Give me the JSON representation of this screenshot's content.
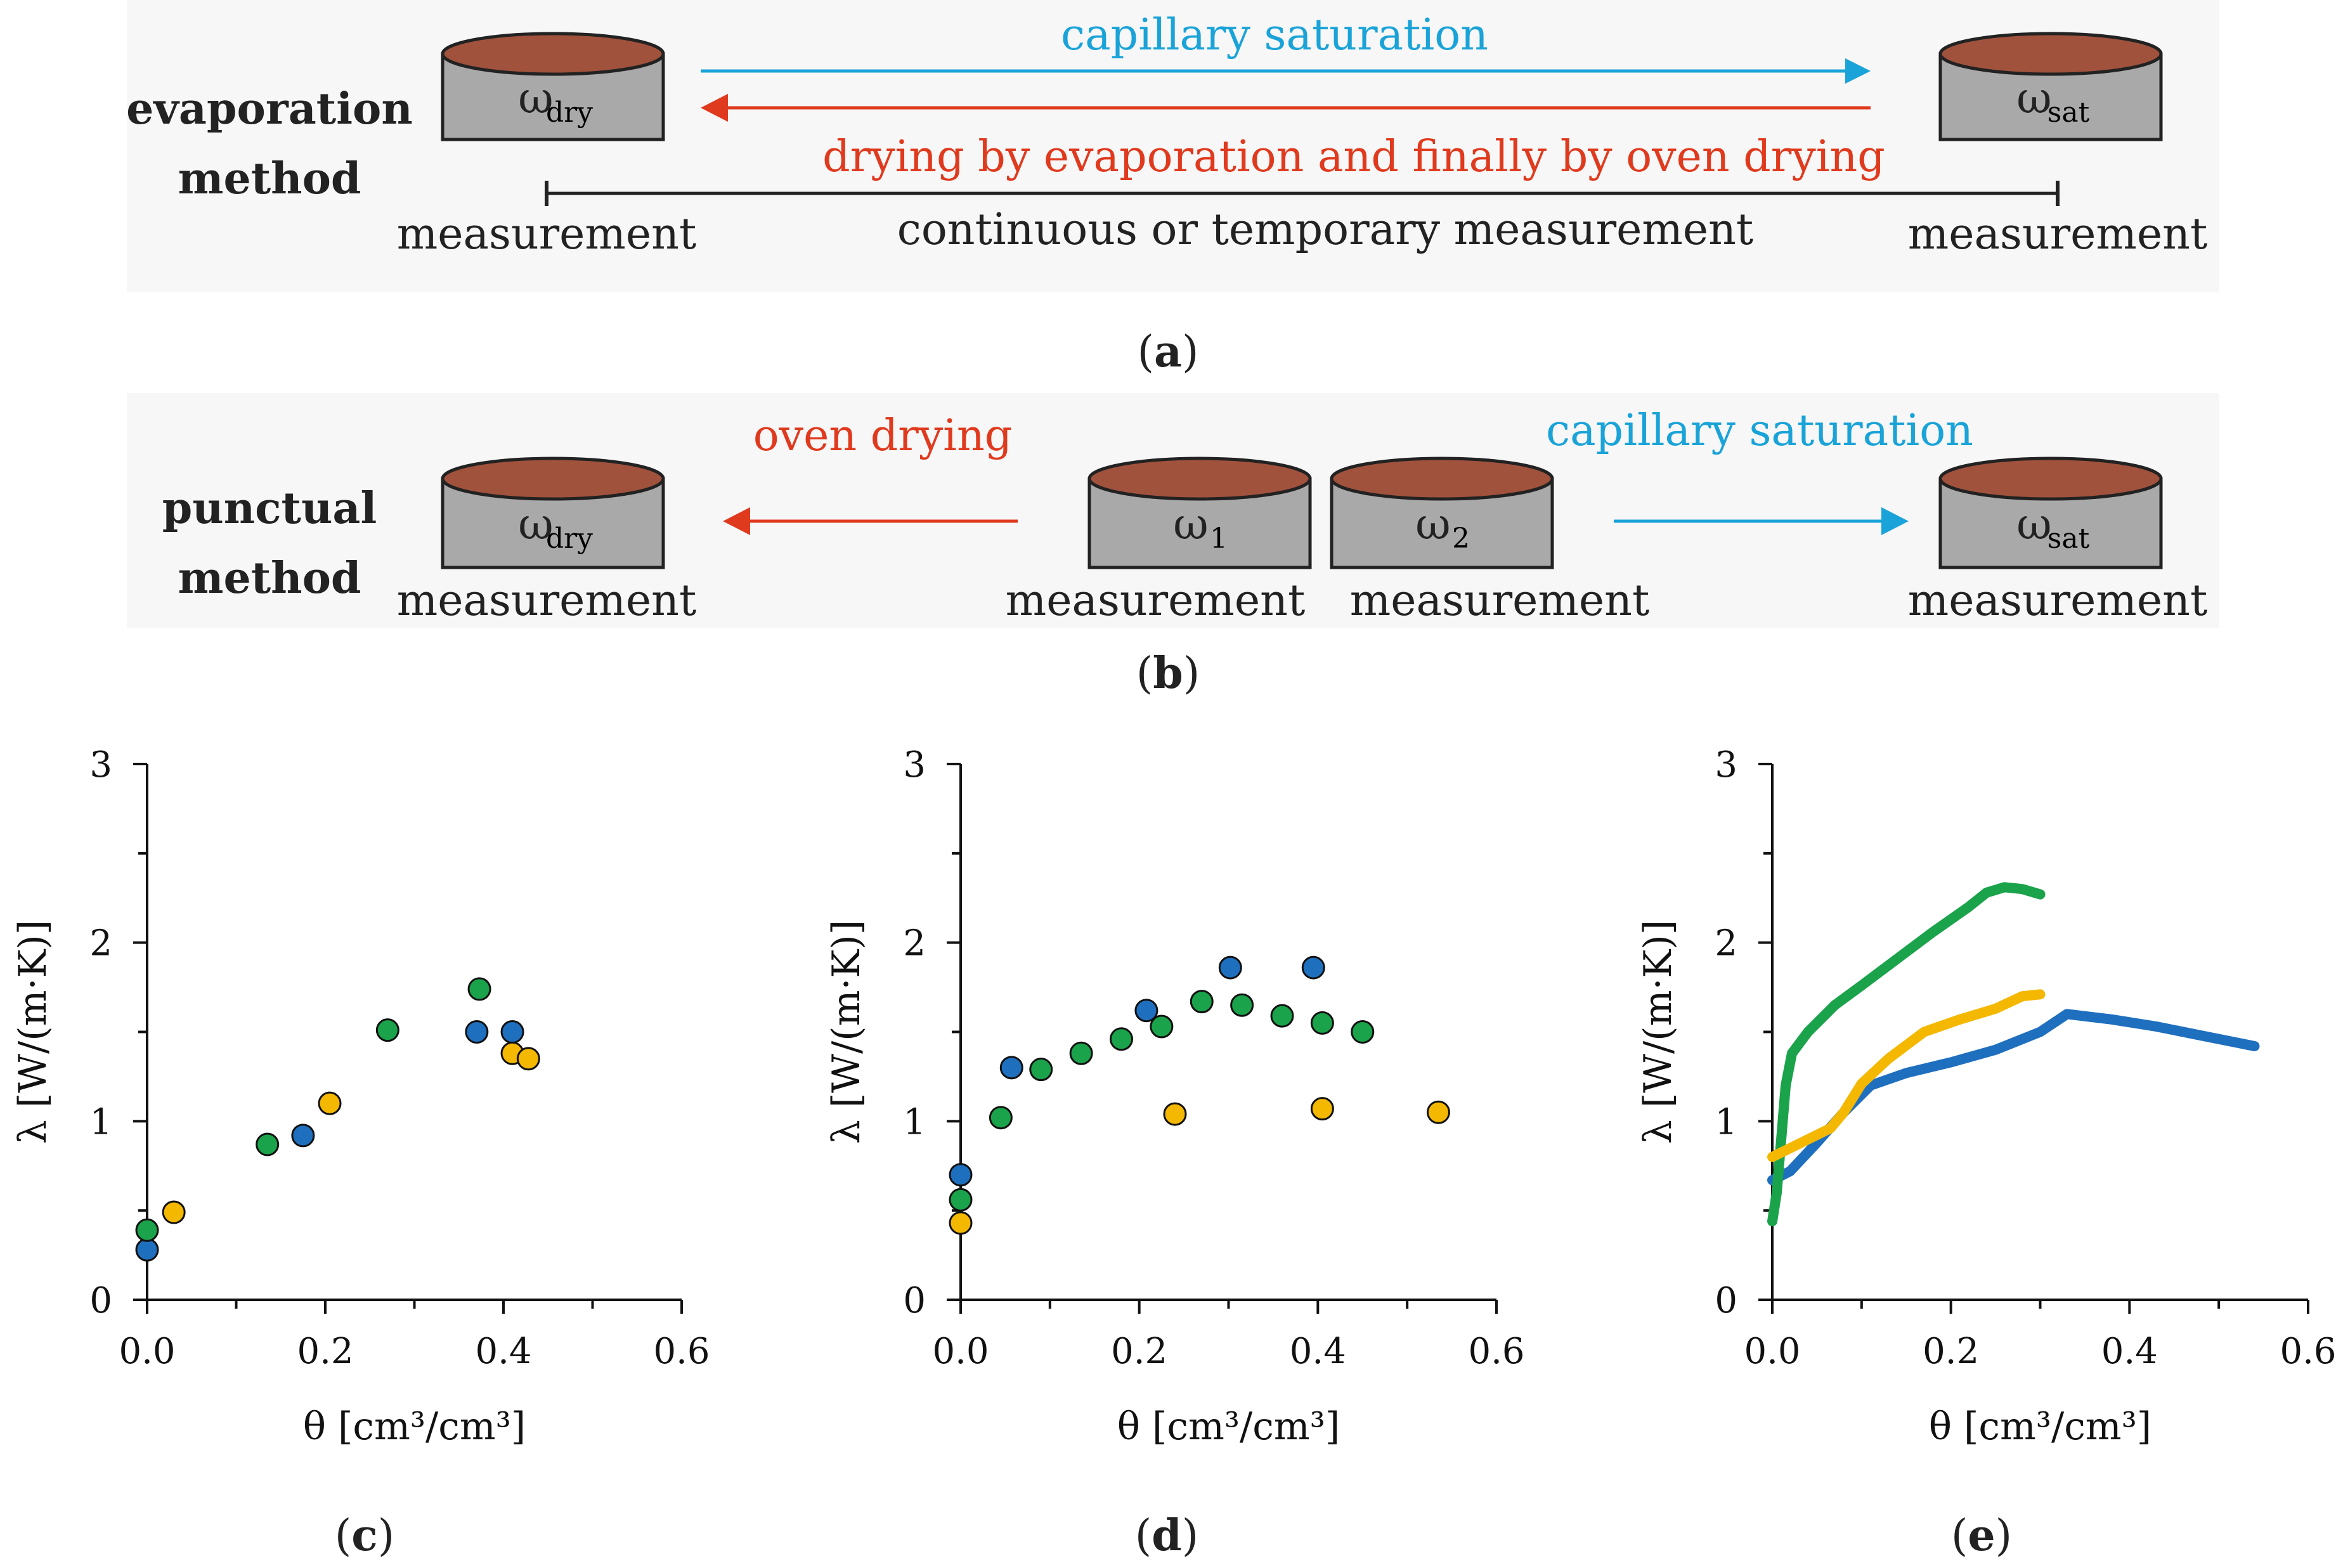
{
  "colors": {
    "blue": "#1f6fbf",
    "green": "#1aa34a",
    "yellow": "#f5b800",
    "cyan_arrow": "#1aa3d8",
    "red_arrow": "#e03a1e",
    "panel_bg": "#f7f7f7",
    "cylinder_body": "#a9a9a9",
    "cylinder_top": "#a0523d"
  },
  "panel_a": {
    "method_line1": "evaporation",
    "method_line2": "method",
    "cyl_left": {
      "symbol": "ω",
      "sub": "dry"
    },
    "cyl_right": {
      "symbol": "ω",
      "sub": "sat"
    },
    "arrow_top_label": "capillary saturation",
    "arrow_bottom_label": "drying by evaporation and finally by oven drying",
    "measure_left": "measurement",
    "measure_middle": "continuous or temporary measurement",
    "measure_right": "measurement",
    "caption_letter": "a"
  },
  "panel_b": {
    "method_line1": "punctual",
    "method_line2": "method",
    "cyl_dry": {
      "symbol": "ω",
      "sub": "dry",
      "measure": "measurement"
    },
    "cyl_1": {
      "symbol": "ω",
      "sub": "1",
      "measure": "measurement"
    },
    "cyl_2": {
      "symbol": "ω",
      "sub": "2",
      "measure": "measurement"
    },
    "cyl_sat": {
      "symbol": "ω",
      "sub": "sat",
      "measure": "measurement"
    },
    "left_arrow_label": "oven drying",
    "right_arrow_label": "capillary saturation",
    "caption_letter": "b"
  },
  "chart_data": [
    {
      "id": "c",
      "type": "scatter",
      "caption_letter": "c",
      "xlabel": "θ [cm³/cm³]",
      "ylabel": "λ [W/(m·K)]",
      "xlim": [
        0,
        0.6
      ],
      "ylim": [
        0,
        3
      ],
      "xticks": [
        "0.0",
        "0.2",
        "0.4",
        "0.6"
      ],
      "yticks": [
        "0",
        "1",
        "2",
        "3"
      ],
      "series": [
        {
          "color": "blue",
          "points": [
            [
              0.0,
              0.28
            ],
            [
              0.175,
              0.92
            ],
            [
              0.37,
              1.5
            ],
            [
              0.41,
              1.5
            ]
          ]
        },
        {
          "color": "green",
          "points": [
            [
              0.0,
              0.39
            ],
            [
              0.135,
              0.87
            ],
            [
              0.27,
              1.51
            ],
            [
              0.373,
              1.74
            ]
          ]
        },
        {
          "color": "yellow",
          "points": [
            [
              0.03,
              0.49
            ],
            [
              0.205,
              1.1
            ],
            [
              0.41,
              1.38
            ],
            [
              0.428,
              1.35
            ]
          ]
        }
      ]
    },
    {
      "id": "d",
      "type": "scatter",
      "caption_letter": "d",
      "xlabel": "θ [cm³/cm³]",
      "ylabel": "λ [W/(m·K)]",
      "xlim": [
        0,
        0.6
      ],
      "ylim": [
        0,
        3
      ],
      "xticks": [
        "0.0",
        "0.2",
        "0.4",
        "0.6"
      ],
      "yticks": [
        "0",
        "1",
        "2",
        "3"
      ],
      "series": [
        {
          "color": "blue",
          "points": [
            [
              0.0,
              0.7
            ],
            [
              0.057,
              1.3
            ],
            [
              0.208,
              1.62
            ],
            [
              0.302,
              1.86
            ],
            [
              0.395,
              1.86
            ]
          ]
        },
        {
          "color": "green",
          "points": [
            [
              0.0,
              0.56
            ],
            [
              0.045,
              1.02
            ],
            [
              0.09,
              1.29
            ],
            [
              0.135,
              1.38
            ],
            [
              0.18,
              1.46
            ],
            [
              0.225,
              1.53
            ],
            [
              0.27,
              1.67
            ],
            [
              0.315,
              1.65
            ],
            [
              0.36,
              1.59
            ],
            [
              0.405,
              1.55
            ],
            [
              0.45,
              1.5
            ]
          ]
        },
        {
          "color": "yellow",
          "points": [
            [
              0.0,
              0.43
            ],
            [
              0.24,
              1.04
            ],
            [
              0.405,
              1.07
            ],
            [
              0.535,
              1.05
            ]
          ]
        }
      ]
    },
    {
      "id": "e",
      "type": "line",
      "caption_letter": "e",
      "xlabel": "θ [cm³/cm³]",
      "ylabel": "λ [W/(m·K)]",
      "xlim": [
        0,
        0.6
      ],
      "ylim": [
        0,
        3
      ],
      "xticks": [
        "0.0",
        "0.2",
        "0.4",
        "0.6"
      ],
      "yticks": [
        "0",
        "1",
        "2",
        "3"
      ],
      "series": [
        {
          "color": "blue",
          "points": [
            [
              0.0,
              0.67
            ],
            [
              0.02,
              0.72
            ],
            [
              0.05,
              0.88
            ],
            [
              0.08,
              1.05
            ],
            [
              0.11,
              1.2
            ],
            [
              0.15,
              1.27
            ],
            [
              0.2,
              1.33
            ],
            [
              0.25,
              1.4
            ],
            [
              0.3,
              1.5
            ],
            [
              0.33,
              1.6
            ],
            [
              0.38,
              1.57
            ],
            [
              0.43,
              1.53
            ],
            [
              0.48,
              1.48
            ],
            [
              0.54,
              1.42
            ]
          ]
        },
        {
          "color": "green",
          "points": [
            [
              0.0,
              0.44
            ],
            [
              0.005,
              0.6
            ],
            [
              0.01,
              0.9
            ],
            [
              0.015,
              1.2
            ],
            [
              0.022,
              1.38
            ],
            [
              0.04,
              1.5
            ],
            [
              0.07,
              1.65
            ],
            [
              0.1,
              1.76
            ],
            [
              0.14,
              1.91
            ],
            [
              0.18,
              2.06
            ],
            [
              0.22,
              2.2
            ],
            [
              0.24,
              2.28
            ],
            [
              0.26,
              2.31
            ],
            [
              0.28,
              2.3
            ],
            [
              0.3,
              2.27
            ]
          ]
        },
        {
          "color": "yellow",
          "points": [
            [
              0.0,
              0.8
            ],
            [
              0.065,
              0.96
            ],
            [
              0.08,
              1.05
            ],
            [
              0.1,
              1.21
            ],
            [
              0.13,
              1.35
            ],
            [
              0.17,
              1.5
            ],
            [
              0.21,
              1.57
            ],
            [
              0.25,
              1.63
            ],
            [
              0.28,
              1.7
            ],
            [
              0.3,
              1.71
            ]
          ]
        }
      ]
    }
  ]
}
